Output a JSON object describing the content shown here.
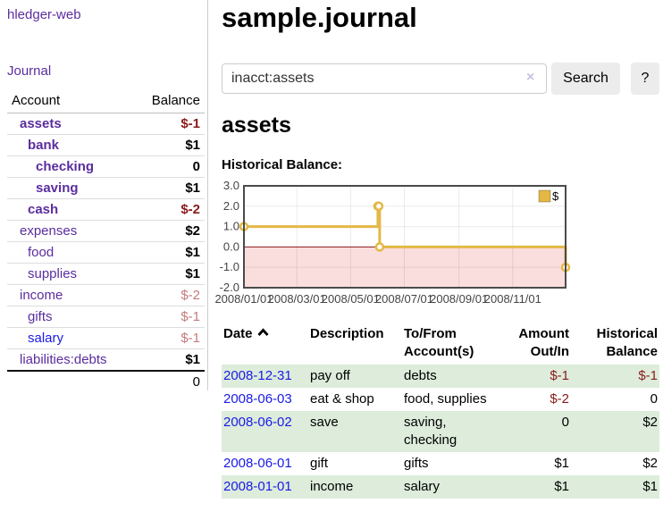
{
  "app": {
    "brand": "hledger-web"
  },
  "nav": {
    "journal": "Journal"
  },
  "sidebar": {
    "headers": {
      "account": "Account",
      "balance": "Balance"
    },
    "accounts": [
      {
        "name": "assets",
        "classes": "inacct",
        "depth": 1,
        "balance": "$-1",
        "balance_class": "neg-strong"
      },
      {
        "name": "bank",
        "classes": "inacct",
        "depth": 2,
        "balance": "$1",
        "balance_class": "pos"
      },
      {
        "name": "checking",
        "classes": "inacct",
        "depth": 3,
        "balance": "0",
        "balance_class": "pos"
      },
      {
        "name": "saving",
        "classes": "inacct",
        "depth": 3,
        "balance": "$1",
        "balance_class": "pos"
      },
      {
        "name": "cash",
        "classes": "inacct",
        "depth": 2,
        "balance": "$-2",
        "balance_class": "neg-strong"
      },
      {
        "name": "expenses",
        "classes": "",
        "depth": 1,
        "balance": "$2",
        "balance_class": "pos"
      },
      {
        "name": "food",
        "classes": "",
        "depth": 2,
        "balance": "$1",
        "balance_class": "pos"
      },
      {
        "name": "supplies",
        "classes": "",
        "depth": 2,
        "balance": "$1",
        "balance_class": "pos"
      },
      {
        "name": "income",
        "classes": "",
        "depth": 1,
        "balance": "$-2",
        "balance_class": "neg-soft"
      },
      {
        "name": "gifts",
        "classes": "",
        "depth": 2,
        "balance": "$-1",
        "balance_class": "neg-soft"
      },
      {
        "name": "salary",
        "classes": "blue",
        "depth": 2,
        "balance": "$-1",
        "balance_class": "neg-soft"
      },
      {
        "name": "liabilities:debts",
        "classes": "",
        "depth": 1,
        "balance": "$1",
        "balance_class": "pos"
      }
    ],
    "total": {
      "balance": "0"
    }
  },
  "main": {
    "title": "sample.journal",
    "search": {
      "value": "inacct:assets",
      "clear": "×",
      "button_label": "Search",
      "help_label": "?"
    },
    "heading": "assets",
    "chart_title": "Historical Balance:"
  },
  "chart_data": {
    "type": "line",
    "step": true,
    "title": "Historical Balance:",
    "x_max_day": 365,
    "x_ticks": [
      {
        "label": "2008/01/01",
        "day": 0
      },
      {
        "label": "2008/03/01",
        "day": 60
      },
      {
        "label": "2008/05/01",
        "day": 121
      },
      {
        "label": "2008/07/01",
        "day": 182
      },
      {
        "label": "2008/09/01",
        "day": 244
      },
      {
        "label": "2008/11/01",
        "day": 305
      }
    ],
    "y_ticks": [
      3,
      2,
      1,
      0,
      -1,
      -2
    ],
    "ylim": [
      -2,
      3
    ],
    "legend_position": "top-right",
    "series": [
      {
        "name": "$",
        "color": "#e3b845",
        "points": [
          {
            "date": "2008-01-01",
            "day": 0,
            "value": 1
          },
          {
            "date": "2008-06-01",
            "day": 152,
            "value": 2
          },
          {
            "date": "2008-06-02",
            "day": 153,
            "value": 2
          },
          {
            "date": "2008-06-03",
            "day": 154,
            "value": 0
          },
          {
            "date": "2008-12-31",
            "day": 365,
            "value": -1
          }
        ]
      }
    ],
    "colors": {
      "negative_region": "#fadddd",
      "zero_line": "#8b1a1a",
      "border": "#4a4a4a",
      "grid": "rgba(0,0,0,0.08)",
      "axis_label": "#444444"
    }
  },
  "register": {
    "headers": {
      "date": "Date",
      "description": "Description",
      "accounts": "To/From Account(s)",
      "amount": "Amount Out/In",
      "balance": "Historical Balance"
    },
    "rows": [
      {
        "date": "2008-12-31",
        "description": "pay off",
        "accounts": "debts",
        "amount": "$-1",
        "amount_class": "neg",
        "balance": "$-1",
        "balance_class": "neg"
      },
      {
        "date": "2008-06-03",
        "description": "eat & shop",
        "accounts": "food, supplies",
        "amount": "$-2",
        "amount_class": "neg",
        "balance": "0",
        "balance_class": "plain"
      },
      {
        "date": "2008-06-02",
        "description": "save",
        "accounts": "saving, checking",
        "amount": "0",
        "amount_class": "plain",
        "balance": "$2",
        "balance_class": "plain"
      },
      {
        "date": "2008-06-01",
        "description": "gift",
        "accounts": "gifts",
        "amount": "$1",
        "amount_class": "plain",
        "balance": "$2",
        "balance_class": "plain"
      },
      {
        "date": "2008-01-01",
        "description": "income",
        "accounts": "salary",
        "amount": "$1",
        "amount_class": "plain",
        "balance": "$1",
        "balance_class": "plain"
      }
    ]
  },
  "colors": {
    "link_purple": "#5b2d9e",
    "link_blue": "#1a1ae6",
    "negative_strong": "#8b1a1a",
    "negative_soft": "#c47c7c",
    "row_green": "#ddecdb",
    "button_gray": "#ececec",
    "chart_gold": "#e3b845",
    "chart_pink": "#fadddd"
  }
}
